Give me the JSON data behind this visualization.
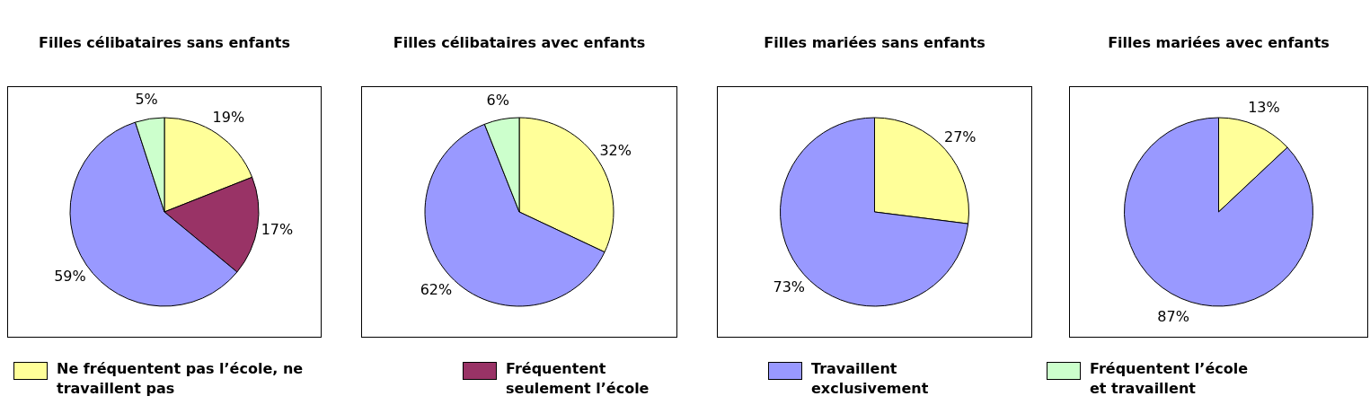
{
  "chart_data": [
    {
      "type": "pie",
      "title": "Filles célibataires sans enfants",
      "categories": [
        "Ne fréquentent pas l’école, ne travaillent pas",
        "Fréquentent seulement l’école",
        "Travaillent exclusivement",
        "Fréquentent l’école et travaillent"
      ],
      "values": [
        19,
        17,
        59,
        5
      ],
      "value_labels": [
        "19%",
        "17%",
        "59%",
        "5%"
      ],
      "colors": [
        "#ffff99",
        "#993366",
        "#9999ff",
        "#ccffcc"
      ],
      "legend": "bottom"
    },
    {
      "type": "pie",
      "title": "Filles célibataires avec enfants",
      "categories": [
        null,
        null,
        null
      ],
      "values": [
        32,
        62,
        6
      ],
      "value_labels": [
        "32%",
        "62%",
        "6%"
      ],
      "colors": [
        "#ffff99",
        "#9999ff",
        "#ccffcc"
      ]
    },
    {
      "type": "pie",
      "title": "Filles mariées sans enfants",
      "categories": [
        null,
        null
      ],
      "values": [
        27,
        73
      ],
      "value_labels": [
        "27%",
        "73%"
      ],
      "colors": [
        "#ffff99",
        "#9999ff"
      ]
    },
    {
      "type": "pie",
      "title": "Filles mariées avec enfants",
      "categories": [
        null,
        null
      ],
      "values": [
        13,
        87
      ],
      "value_labels": [
        "13%",
        "87%"
      ],
      "colors": [
        "#ffff99",
        "#9999ff"
      ]
    }
  ]
}
